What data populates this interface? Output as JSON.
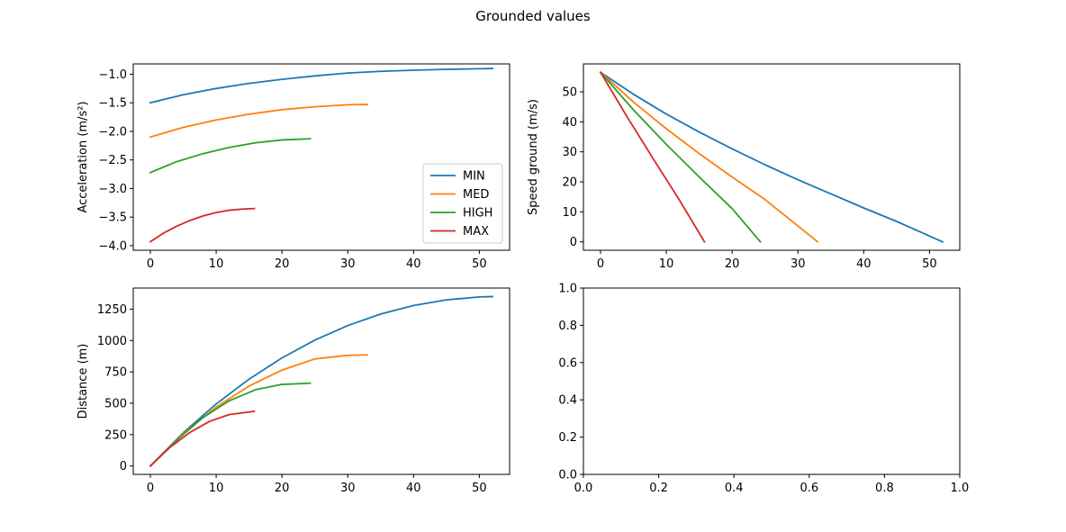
{
  "figure": {
    "title": "Grounded values"
  },
  "colors": {
    "MIN": "#1f77b4",
    "MED": "#ff7f0e",
    "HIGH": "#2ca02c",
    "MAX": "#d62728"
  },
  "chart_data": [
    {
      "id": "acceleration",
      "type": "line",
      "title": "",
      "xlabel": "",
      "ylabel": "Acceleration (m/s²)",
      "xlim": [
        -2.6,
        54.6
      ],
      "ylim": [
        -4.08,
        -0.82
      ],
      "xticks": [
        0,
        10,
        20,
        30,
        40,
        50
      ],
      "xtick_labels": [
        "0",
        "10",
        "20",
        "30",
        "40",
        "50"
      ],
      "yticks": [
        -4.0,
        -3.5,
        -3.0,
        -2.5,
        -2.0,
        -1.5,
        -1.0
      ],
      "ytick_labels": [
        "−4.0",
        "−3.5",
        "−3.0",
        "−2.5",
        "−2.0",
        "−1.5",
        "−1.0"
      ],
      "legend": {
        "placement": "lower-right",
        "entries": [
          "MIN",
          "MED",
          "HIGH",
          "MAX"
        ]
      },
      "series": [
        {
          "name": "MIN",
          "x": [
            0,
            5,
            10,
            15,
            20,
            25,
            30,
            35,
            40,
            45,
            50,
            52
          ],
          "y": [
            -1.5,
            -1.36,
            -1.25,
            -1.16,
            -1.09,
            -1.03,
            -0.98,
            -0.95,
            -0.93,
            -0.915,
            -0.905,
            -0.9
          ]
        },
        {
          "name": "MED",
          "x": [
            0,
            5,
            10,
            15,
            20,
            25,
            30,
            33
          ],
          "y": [
            -2.1,
            -1.93,
            -1.8,
            -1.7,
            -1.62,
            -1.57,
            -1.535,
            -1.53
          ]
        },
        {
          "name": "HIGH",
          "x": [
            0,
            4,
            8,
            12,
            16,
            20,
            24.3
          ],
          "y": [
            -2.72,
            -2.53,
            -2.39,
            -2.28,
            -2.2,
            -2.15,
            -2.13
          ]
        },
        {
          "name": "MAX",
          "x": [
            0,
            2,
            4,
            6,
            8,
            10,
            12,
            14,
            15.8
          ],
          "y": [
            -3.93,
            -3.78,
            -3.66,
            -3.56,
            -3.48,
            -3.42,
            -3.38,
            -3.36,
            -3.35
          ]
        }
      ]
    },
    {
      "id": "speed",
      "type": "line",
      "title": "",
      "xlabel": "",
      "ylabel": "Speed ground (m/s)",
      "xlim": [
        -2.6,
        54.6
      ],
      "ylim": [
        -2.8,
        59.3
      ],
      "xticks": [
        0,
        10,
        20,
        30,
        40,
        50
      ],
      "xtick_labels": [
        "0",
        "10",
        "20",
        "30",
        "40",
        "50"
      ],
      "yticks": [
        0,
        10,
        20,
        30,
        40,
        50
      ],
      "ytick_labels": [
        "0",
        "10",
        "20",
        "30",
        "40",
        "50"
      ],
      "series": [
        {
          "name": "MIN",
          "x": [
            0,
            5,
            10,
            15,
            20,
            25,
            30,
            35,
            40,
            45,
            52
          ],
          "y": [
            56.5,
            49.2,
            42.6,
            36.6,
            31.0,
            25.7,
            20.7,
            16.0,
            11.3,
            6.8,
            0
          ]
        },
        {
          "name": "MED",
          "x": [
            0,
            5,
            10,
            15,
            20,
            25,
            33
          ],
          "y": [
            56.5,
            46.6,
            37.7,
            29.4,
            21.6,
            14.1,
            0
          ]
        },
        {
          "name": "HIGH",
          "x": [
            0,
            5,
            10,
            15,
            20,
            24.3
          ],
          "y": [
            56.5,
            44.0,
            32.5,
            21.6,
            11.1,
            0
          ]
        },
        {
          "name": "MAX",
          "x": [
            0,
            4,
            8,
            12,
            15.8
          ],
          "y": [
            56.5,
            41.8,
            27.7,
            13.9,
            0
          ]
        }
      ]
    },
    {
      "id": "distance",
      "type": "line",
      "title": "",
      "xlabel": "",
      "ylabel": "Distance (m)",
      "xlim": [
        -2.6,
        54.6
      ],
      "ylim": [
        -67,
        1418
      ],
      "xticks": [
        0,
        10,
        20,
        30,
        40,
        50
      ],
      "xtick_labels": [
        "0",
        "10",
        "20",
        "30",
        "40",
        "50"
      ],
      "yticks": [
        0,
        250,
        500,
        750,
        1000,
        1250
      ],
      "ytick_labels": [
        "0",
        "250",
        "500",
        "750",
        "1000",
        "1250"
      ],
      "series": [
        {
          "name": "MIN",
          "x": [
            0,
            5,
            10,
            15,
            20,
            25,
            30,
            35,
            40,
            45,
            50,
            52
          ],
          "y": [
            0,
            265,
            494,
            692,
            861,
            1003,
            1119,
            1211,
            1279,
            1324,
            1347,
            1350
          ]
        },
        {
          "name": "MED",
          "x": [
            0,
            5,
            10,
            15,
            20,
            25,
            30,
            33
          ],
          "y": [
            0,
            259,
            469,
            637,
            764,
            853,
            882,
            885
          ]
        },
        {
          "name": "HIGH",
          "x": [
            0,
            4,
            8,
            12,
            16,
            20,
            24.3
          ],
          "y": [
            0,
            205,
            386,
            520,
            608,
            650,
            660
          ]
        },
        {
          "name": "MAX",
          "x": [
            0,
            3,
            6,
            9,
            12,
            15.8
          ],
          "y": [
            0,
            149,
            267,
            356,
            410,
            435
          ]
        }
      ]
    },
    {
      "id": "empty",
      "type": "line",
      "title": "",
      "xlabel": "",
      "ylabel": "",
      "xlim": [
        0,
        1
      ],
      "ylim": [
        0,
        1
      ],
      "xticks": [
        0,
        0.2,
        0.4,
        0.6,
        0.8,
        1.0
      ],
      "xtick_labels": [
        "0.0",
        "0.2",
        "0.4",
        "0.6",
        "0.8",
        "1.0"
      ],
      "yticks": [
        0,
        0.2,
        0.4,
        0.6,
        0.8,
        1.0
      ],
      "ytick_labels": [
        "0.0",
        "0.2",
        "0.4",
        "0.6",
        "0.8",
        "1.0"
      ],
      "series": []
    }
  ]
}
